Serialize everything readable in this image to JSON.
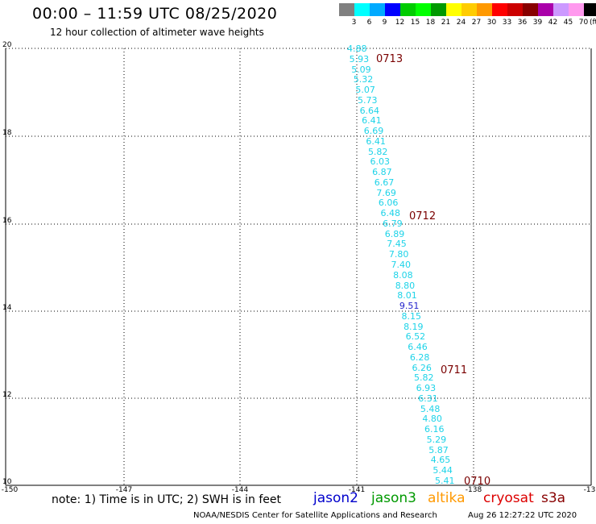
{
  "header": {
    "title": "00:00 – 11:59 UTC 08/25/2020",
    "subtitle": "12 hour collection of altimeter wave heights"
  },
  "color_scale": {
    "labels": [
      "3",
      "6",
      "9",
      "12",
      "15",
      "18",
      "21",
      "24",
      "27",
      "30",
      "33",
      "36",
      "39",
      "42",
      "45",
      "70"
    ],
    "unit": "(ft)",
    "colors": [
      "#808080",
      "#00ffff",
      "#00aaff",
      "#0000ff",
      "#00cc00",
      "#00ff00",
      "#009900",
      "#ffff00",
      "#ffcc00",
      "#ff9900",
      "#ff0000",
      "#cc0000",
      "#880000",
      "#aa00aa",
      "#cc99ff",
      "#ff99ee",
      "#000000"
    ]
  },
  "axes": {
    "lat_labels": [
      "20",
      "18",
      "16",
      "14",
      "12",
      "10"
    ],
    "lon_labels": [
      "-150",
      "-147",
      "-144",
      "-141",
      "-138",
      "-13"
    ]
  },
  "observations": {
    "values": [
      "4.88",
      "5.93",
      "5.09",
      "5.32",
      "5.07",
      "5.73",
      "6.64",
      "6.41",
      "6.69",
      "6.41",
      "5.82",
      "6.03",
      "6.87",
      "6.67",
      "7.69",
      "6.06",
      "6.48",
      "6.79",
      "6.89",
      "7.45",
      "7.80",
      "7.40",
      "8.08",
      "8.80",
      "8.01",
      "9.51",
      "8.15",
      "8.19",
      "6.52",
      "6.46",
      "6.28",
      "6.26",
      "5.82",
      "6.93",
      "6.31",
      "5.48",
      "4.80",
      "6.16",
      "5.29",
      "5.87",
      "4.65",
      "5.44",
      "5.41"
    ],
    "satellite_index_jason2": 25
  },
  "time_markers": [
    "0713",
    "0712",
    "0711",
    "0710"
  ],
  "note": "note: 1) Time is in UTC; 2) SWH is in feet",
  "satellites": [
    {
      "name": "jason2",
      "color": "#0000cc"
    },
    {
      "name": "jason3",
      "color": "#009900"
    },
    {
      "name": "altika",
      "color": "#ff9900"
    },
    {
      "name": "cryosat",
      "color": "#dd0000"
    },
    {
      "name": "s3a",
      "color": "#880000"
    }
  ],
  "footer": {
    "credit": "NOAA/NESDIS Center for Satellite Applications and Research",
    "timestamp": "Aug 26 12:27:22 UTC 2020"
  }
}
